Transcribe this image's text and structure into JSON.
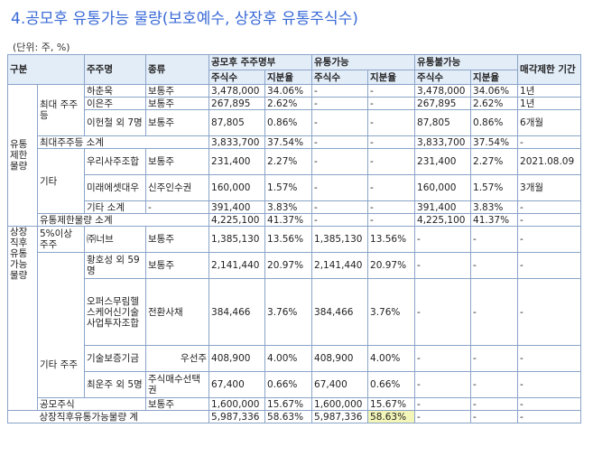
{
  "title": "4.공모후 유통가능 물량(보호예수, 상장후 유통주식수)",
  "unit": "(단위: 주, %)",
  "headers": {
    "gubun": "구분",
    "holder": "주주명",
    "kind": "종류",
    "after_ipo": "공모후 주주명부",
    "tradable": "유통가능",
    "restricted": "유통불가능",
    "lockup": "매각제한 기간",
    "shares": "주식수",
    "ratio": "지분율"
  },
  "labels": {
    "restricted_group": "유통 제한 물량",
    "largest": "최대 주주 등",
    "largest_subtotal": "최대주주등 소계",
    "others": "기타",
    "others_subtotal": "기타 소계",
    "restricted_subtotal": "유통제한물량 소계",
    "tradable_group": "상장 직후 유통 가능 물량",
    "over5": "5%이상 주주",
    "others2": "기타 주주",
    "public": "공모주식",
    "total": "상장직후유통가능물량 계"
  },
  "rows": {
    "r1": {
      "name": "하춘욱",
      "kind": "보통주",
      "shares": "3,478,000",
      "ratio": "34.06%",
      "t_shares": "-",
      "t_ratio": "-",
      "r_shares": "3,478,000",
      "r_ratio": "34.06%",
      "lock": "1년"
    },
    "r2": {
      "name": "이은주",
      "kind": "보통주",
      "shares": "267,895",
      "ratio": "2.62%",
      "t_shares": "-",
      "t_ratio": "-",
      "r_shares": "267,895",
      "r_ratio": "2.62%",
      "lock": "1년"
    },
    "r3": {
      "name": "이헌철 외 7명",
      "kind": "보통주",
      "shares": "87,805",
      "ratio": "0.86%",
      "t_shares": "-",
      "t_ratio": "-",
      "r_shares": "87,805",
      "r_ratio": "0.86%",
      "lock": "6개월"
    },
    "r4": {
      "shares": "3,833,700",
      "ratio": "37.54%",
      "t_shares": "-",
      "t_ratio": "-",
      "r_shares": "3,833,700",
      "r_ratio": "37.54%",
      "lock": "-"
    },
    "r5": {
      "name": "우리사주조합",
      "kind": "보통주",
      "shares": "231,400",
      "ratio": "2.27%",
      "t_shares": "-",
      "t_ratio": "-",
      "r_shares": "231,400",
      "r_ratio": "2.27%",
      "lock": "2021.08.09"
    },
    "r6": {
      "name": "미래에셋대우",
      "kind": "신주인수권",
      "shares": "160,000",
      "ratio": "1.57%",
      "t_shares": "-",
      "t_ratio": "-",
      "r_shares": "160,000",
      "r_ratio": "1.57%",
      "lock": "3개월"
    },
    "r7": {
      "kind": "-",
      "shares": "391,400",
      "ratio": "3.83%",
      "t_shares": "-",
      "t_ratio": "-",
      "r_shares": "391,400",
      "r_ratio": "3.83%",
      "lock": "-"
    },
    "r8": {
      "shares": "4,225,100",
      "ratio": "41.37%",
      "t_shares": "-",
      "t_ratio": "-",
      "r_shares": "4,225,100",
      "r_ratio": "41.37%",
      "lock": "-"
    },
    "r9": {
      "name": "㈜너브",
      "kind": "보통주",
      "shares": "1,385,130",
      "ratio": "13.56%",
      "t_shares": "1,385,130",
      "t_ratio": "13.56%",
      "r_shares": "-",
      "r_ratio": "-",
      "lock": "-"
    },
    "r10": {
      "name": "황호성 외 59명",
      "kind": "보통주",
      "shares": "2,141,440",
      "ratio": "20.97%",
      "t_shares": "2,141,440",
      "t_ratio": "20.97%",
      "r_shares": "-",
      "r_ratio": "-",
      "lock": "-"
    },
    "r11": {
      "name": "오퍼스무림헬스케어신기술사업투자조합",
      "kind": "전환사채",
      "shares": "384,466",
      "ratio": "3.76%",
      "t_shares": "384,466",
      "t_ratio": "3.76%",
      "r_shares": "-",
      "r_ratio": "-",
      "lock": "-"
    },
    "r12": {
      "name": "기술보증기금",
      "kind": "우선주",
      "shares": "408,900",
      "ratio": "4.00%",
      "t_shares": "408,900",
      "t_ratio": "4.00%",
      "r_shares": "-",
      "r_ratio": "-",
      "lock": "-"
    },
    "r13": {
      "name": "최운주 외 5명",
      "kind": "주식매수선택권",
      "shares": "67,400",
      "ratio": "0.66%",
      "t_shares": "67,400",
      "t_ratio": "0.66%",
      "r_shares": "-",
      "r_ratio": "-",
      "lock": "-"
    },
    "r14": {
      "kind": "보통주",
      "shares": "1,600,000",
      "ratio": "15.67%",
      "t_shares": "1,600,000",
      "t_ratio": "15.67%",
      "r_shares": "-",
      "r_ratio": "-",
      "lock": "-"
    },
    "r15": {
      "shares": "5,987,336",
      "ratio": "58.63%",
      "t_shares": "5,987,336",
      "t_ratio": "58.63%",
      "r_shares": "-",
      "r_ratio": "-",
      "lock": "-"
    }
  },
  "highlight_color": "#f3f6b8"
}
